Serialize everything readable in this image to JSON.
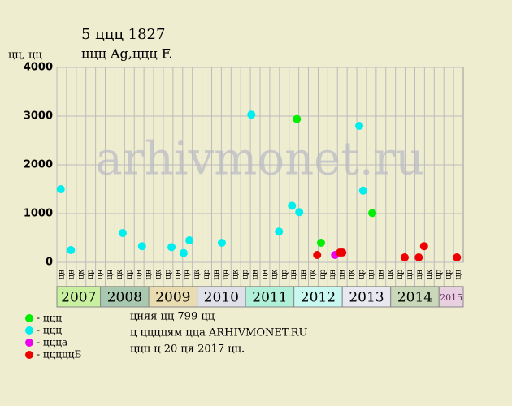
{
  "chart_data": {
    "type": "scatter",
    "title": "5 ццц 1827",
    "subtitle": "ццц Ag,ццц F.",
    "y_label": "цц, цц",
    "watermark": "arhivmonet.ru",
    "xlim": [
      2007.1,
      2015.5
    ],
    "xticks": [
      {
        "value": 2007,
        "label": "2007"
      },
      {
        "value": 2008,
        "label": "2008"
      },
      {
        "value": 2009,
        "label": "2009"
      },
      {
        "value": 2010,
        "label": "2010"
      },
      {
        "value": 2011,
        "label": "2011"
      },
      {
        "value": 2012,
        "label": "2012"
      },
      {
        "value": 2013,
        "label": "2013"
      },
      {
        "value": 2014,
        "label": "2014"
      },
      {
        "value": 2015,
        "label": "2015"
      }
    ],
    "band_colors": [
      "#c8f0a0",
      "#a8c8b0",
      "#e8dcb0",
      "#e0e0e8",
      "#b0f0d8",
      "#c8f8f0",
      "#e8e8f0",
      "#c8d8b8",
      "#e8d0e0"
    ],
    "column_labels": [
      "цн",
      "цн",
      "цк",
      "цр",
      "цн",
      "цн",
      "цк",
      "цр",
      "цн",
      "цн",
      "цк",
      "цр",
      "цн",
      "цн",
      "цк",
      "цр",
      "цн",
      "цн",
      "цк",
      "цр",
      "цн",
      "цн",
      "цк",
      "цр",
      "цн",
      "цн",
      "цк",
      "цр",
      "цн",
      "цн",
      "цк",
      "цр",
      "цн",
      "цн",
      "цк",
      "цр",
      "цн",
      "цн",
      "цк",
      "цр",
      "цр",
      "цн"
    ],
    "ylim": [
      0,
      4000
    ],
    "yticks": [
      0,
      1000,
      2000,
      3000,
      4000
    ],
    "grid": true,
    "series": [
      {
        "name": "- ццц",
        "color": "#00ee00",
        "x": [
          2012.06,
          2012.56,
          2013.62
        ],
        "values": [
          2940,
          400,
          1010
        ]
      },
      {
        "name": "- ццц",
        "color": "#00eeee",
        "x": [
          2007.18,
          2007.39,
          2008.46,
          2008.86,
          2009.47,
          2009.72,
          2009.84,
          2010.51,
          2011.12,
          2011.69,
          2011.96,
          2012.11,
          2013.35,
          2013.43
        ],
        "values": [
          1500,
          250,
          600,
          330,
          310,
          190,
          450,
          400,
          3030,
          630,
          1160,
          1030,
          2800,
          1470
        ]
      },
      {
        "name": "- ццца",
        "color": "#ee00ee",
        "x": [
          2012.85
        ],
        "values": [
          150
        ]
      },
      {
        "name": "- цццццБ",
        "color": "#ee0000",
        "x": [
          2012.48,
          2012.95,
          2013.0,
          2014.29,
          2014.58,
          2014.69,
          2015.37
        ],
        "values": [
          150,
          200,
          200,
          100,
          100,
          330,
          100
        ]
      }
    ],
    "notes": [
      "цняя цц 799 цц",
      "ц ццццям цца ARHIVMONET.RU",
      "ццц ц 20 ця 2017 цц."
    ]
  }
}
